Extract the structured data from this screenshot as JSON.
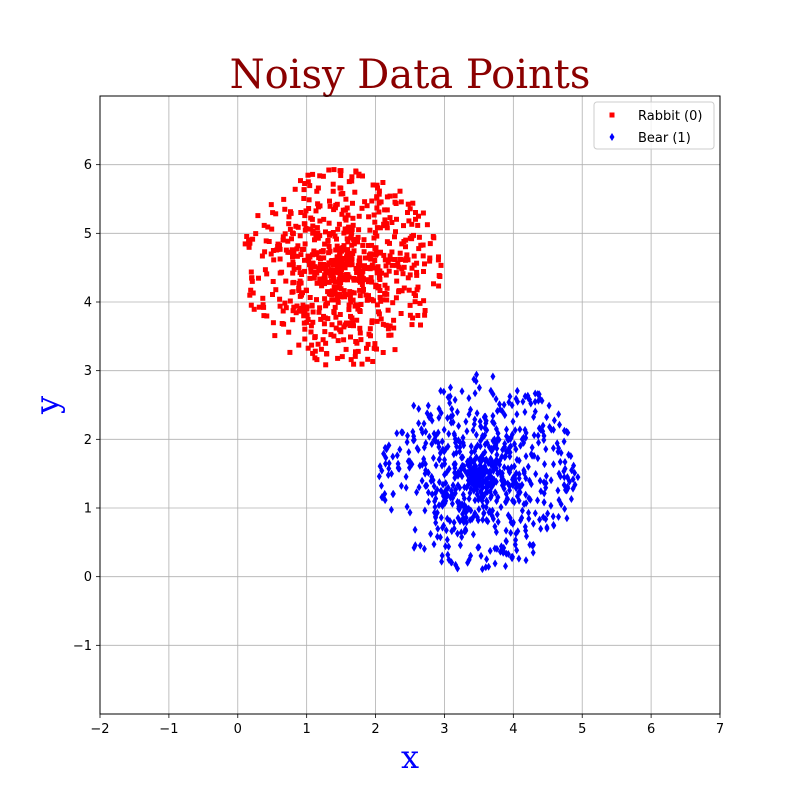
{
  "chart_data": {
    "type": "scatter",
    "title": "Noisy Data Points",
    "title_color": "#8b0000",
    "xlabel": "x",
    "ylabel": "y",
    "axis_label_color": "#0000ff",
    "xlim": [
      -2,
      7
    ],
    "ylim": [
      -2,
      7
    ],
    "x_ticks": [
      "−2",
      "−1",
      "0",
      "1",
      "2",
      "3",
      "4",
      "5",
      "6",
      "7"
    ],
    "y_ticks": [
      "−1",
      "0",
      "1",
      "2",
      "3",
      "4",
      "5",
      "6"
    ],
    "grid": true,
    "legend_position": "top-right",
    "series": [
      {
        "name": "Rabbit (0)",
        "color": "#ff0000",
        "marker": "square",
        "center": [
          1.5,
          4.5
        ],
        "radius": 1.45,
        "count": 800
      },
      {
        "name": "Bear (1)",
        "color": "#0000ff",
        "marker": "thin-diamond",
        "center": [
          3.5,
          1.5
        ],
        "radius": 1.45,
        "count": 800
      }
    ]
  }
}
